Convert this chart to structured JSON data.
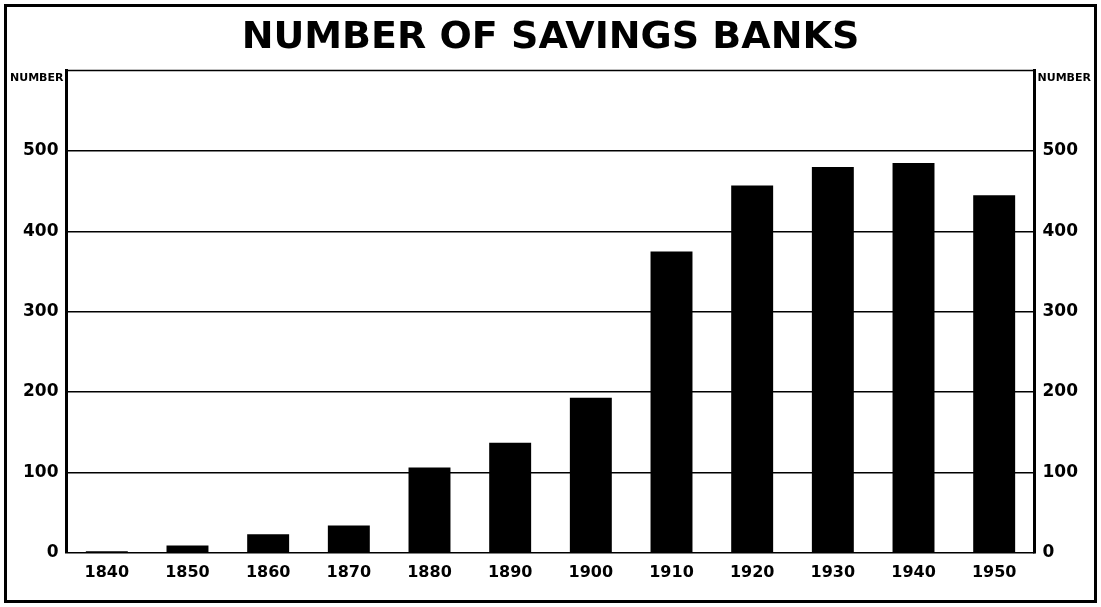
{
  "chart_data": {
    "type": "bar",
    "title": "NUMBER OF SAVINGS BANKS",
    "ylabel": "NUMBER",
    "y2label": "NUMBER",
    "categories": [
      "1840",
      "1850",
      "1860",
      "1870",
      "1880",
      "1890",
      "1900",
      "1910",
      "1920",
      "1930",
      "1940",
      "1950"
    ],
    "values": [
      2,
      9,
      23,
      34,
      106,
      137,
      193,
      375,
      457,
      480,
      485,
      445
    ],
    "color": "#000000",
    "ylim": [
      0,
      600
    ],
    "yticks": [
      0,
      100,
      200,
      300,
      400,
      500
    ],
    "y2lim": [
      0,
      600
    ],
    "y2ticks": [
      0,
      100,
      200,
      300,
      400,
      500
    ],
    "grid": "y"
  }
}
